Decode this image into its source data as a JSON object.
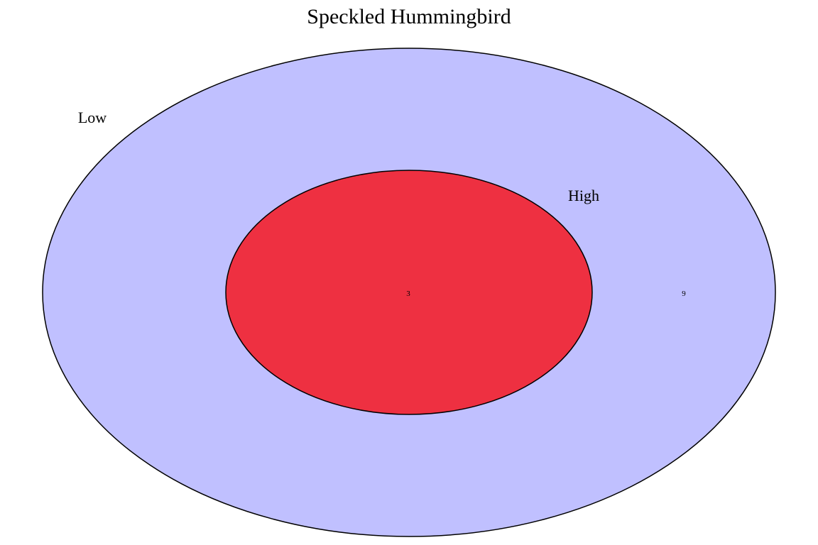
{
  "title": "Speckled Hummingbird",
  "sets": [
    {
      "name": "Low",
      "color": "#C0C0FF",
      "region_count": "9"
    },
    {
      "name": "High",
      "color": "#EE3041",
      "region_count": "3"
    }
  ],
  "relationship": "High is fully contained within Low",
  "stroke_color": "#000000"
}
